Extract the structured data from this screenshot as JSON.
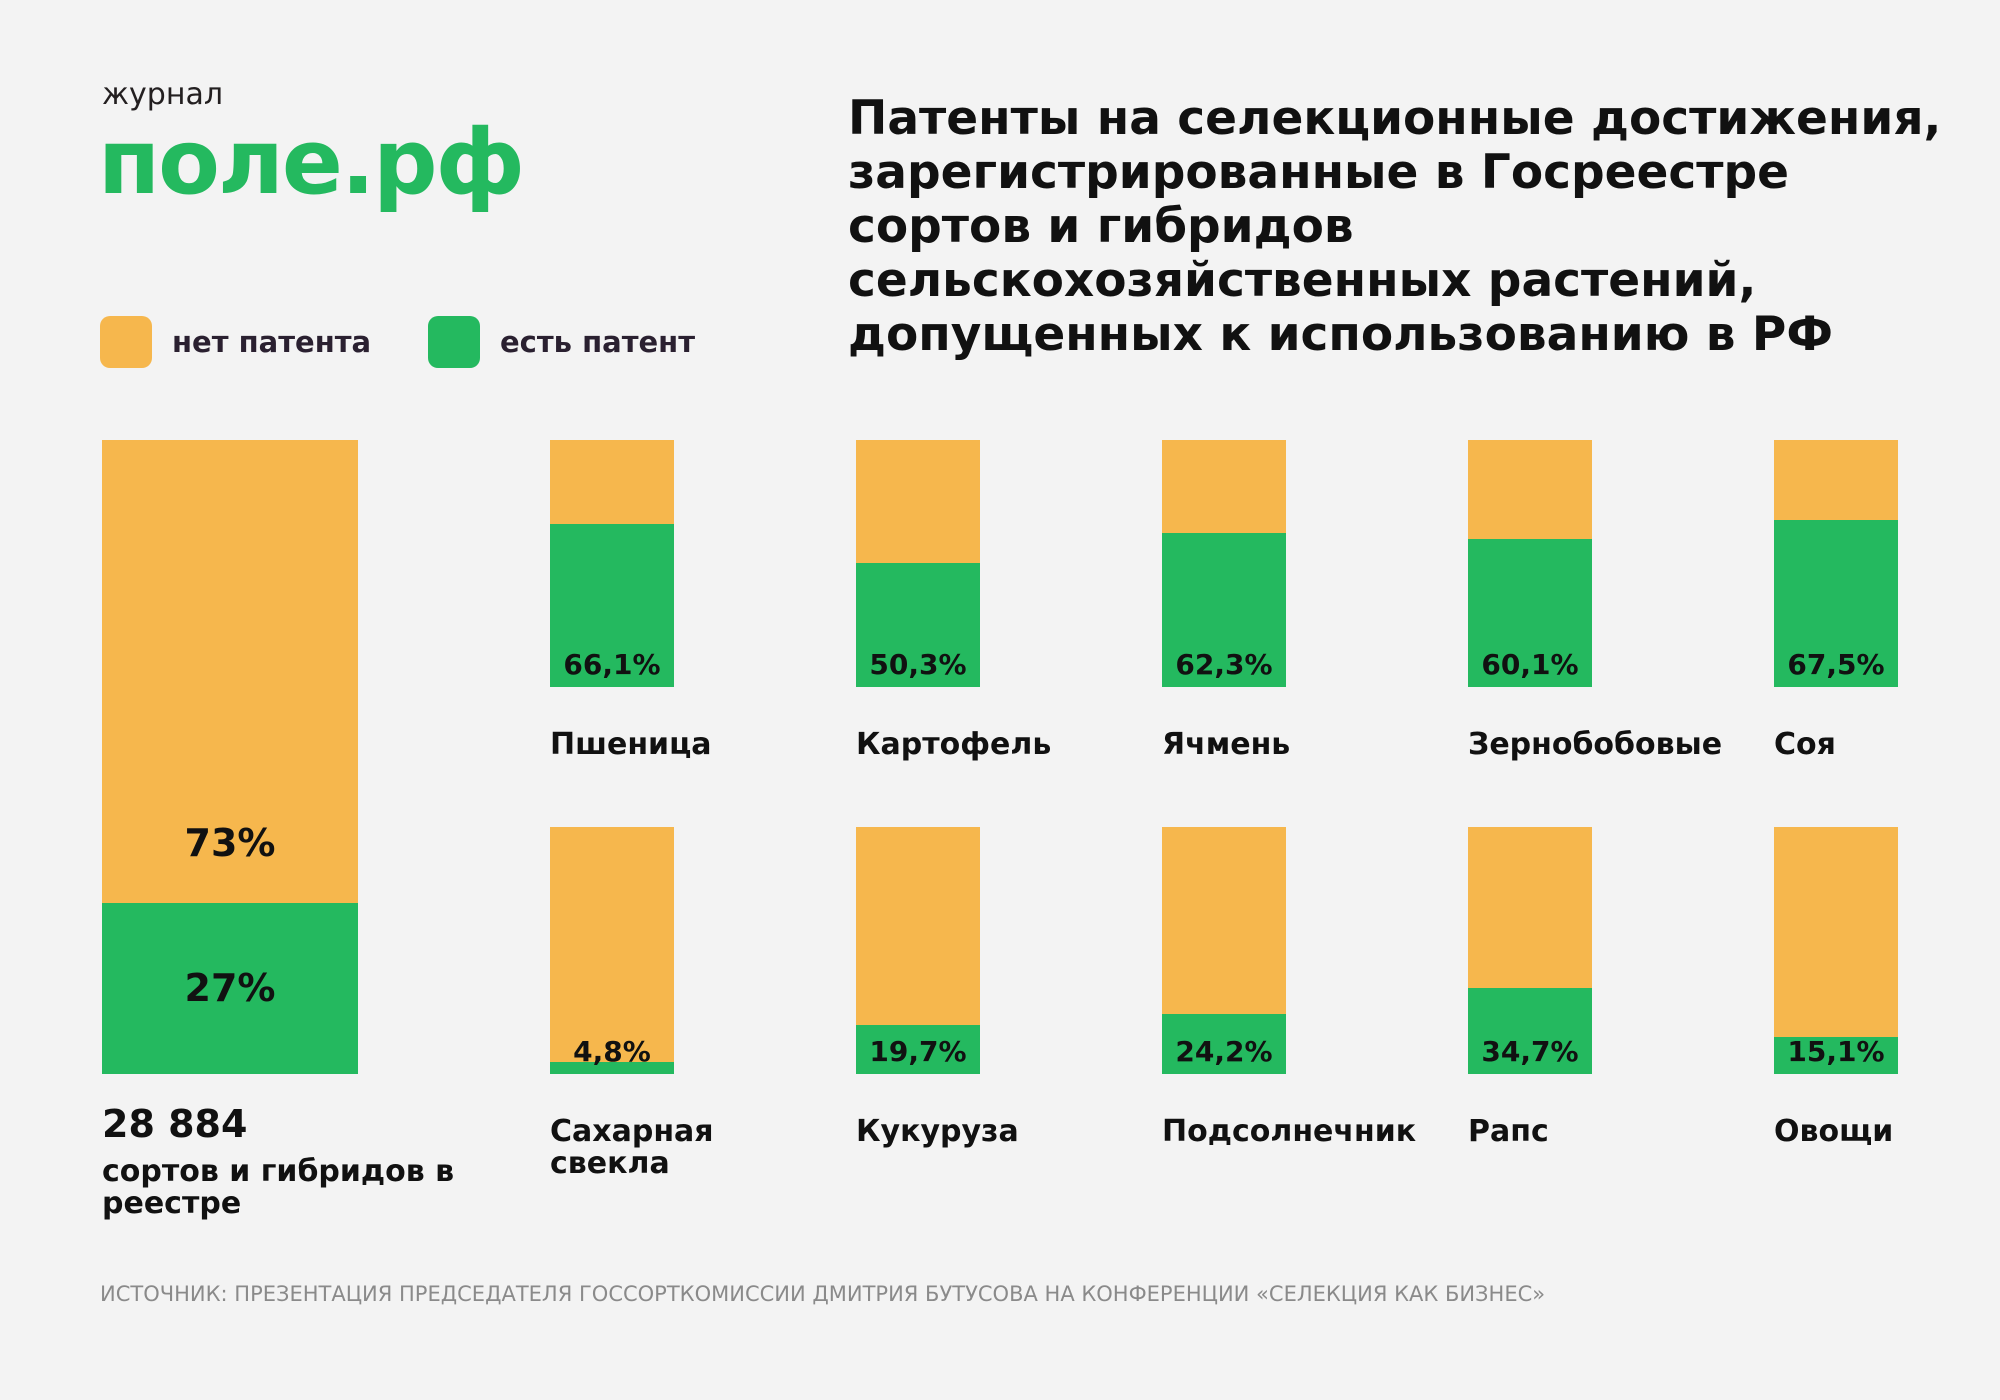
{
  "logo": {
    "top": "журнал",
    "main": "поле.рф"
  },
  "title": "Патенты на селекционные достижения, зарегистрированные в Госреестре сортов и гибридов сельскохозяйственных растений, допущенных к использованию в РФ",
  "legend": [
    {
      "label": "нет патента",
      "color": "#f6b74d"
    },
    {
      "label": "есть патент",
      "color": "#24b95f"
    }
  ],
  "total": {
    "number": "28 884",
    "text": "сортов и гибридов в реестре",
    "no_patent_label": "73%",
    "patent_label": "27%",
    "patent_pct": 27
  },
  "chart_data": {
    "type": "bar",
    "stacked": true,
    "title": "Патенты на селекционные достижения, зарегистрированные в Госреестре сортов и гибридов сельскохозяйственных растений, допущенных к использованию в РФ",
    "series": [
      {
        "name": "есть патент",
        "values": [
          66.1,
          50.3,
          62.3,
          60.1,
          67.5,
          4.8,
          19.7,
          24.2,
          34.7,
          15.1
        ]
      },
      {
        "name": "нет патента",
        "values": [
          33.9,
          49.7,
          37.7,
          39.9,
          32.5,
          95.2,
          80.3,
          75.8,
          65.3,
          84.9
        ]
      }
    ],
    "categories": [
      "Пшеница",
      "Картофель",
      "Ячмень",
      "Зернобобовые",
      "Соя",
      "Сахарная свекла",
      "Кукуруза",
      "Подсолнечник",
      "Рапс",
      "Овощи"
    ],
    "labels": [
      "66,1%",
      "50,3%",
      "62,3%",
      "60,1%",
      "67,5%",
      "4,8%",
      "19,7%",
      "24,2%",
      "34,7%",
      "15,1%"
    ],
    "ylim": [
      0,
      100
    ],
    "colors": {
      "patent": "#24b95f",
      "no_patent": "#f6b74d"
    }
  },
  "source": "ИСТОЧНИК: ПРЕЗЕНТАЦИЯ ПРЕДСЕДАТЕЛЯ ГОССОРТКОМИССИИ ДМИТРИЯ БУТУСОВА НА КОНФЕРЕНЦИИ «СЕЛЕКЦИЯ КАК БИЗНЕС»"
}
